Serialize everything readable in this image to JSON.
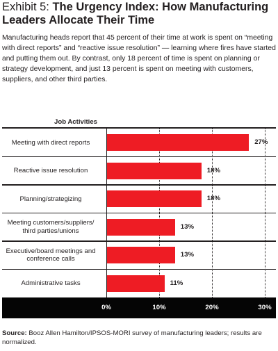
{
  "exhibit": {
    "title_lead": "Exhibit 5: ",
    "title_bold": "The Urgency Index: How Manufacturing Leaders Allocate Their Time",
    "intro": "Manufacturing heads report that 45 percent of their time at work is spent on “meeting with direct reports” and “reactive issue resolution” — learning where fires have started and putting them out. By contrast, only 18 percent of time is spent on planning or strategy development, and just 13 percent is spent on meeting with customers, suppliers, and other third parties.",
    "source_lead": "Source:",
    "source_text": " Booz Allen Hamilton/IPSOS-MORI survey of manufacturing leaders; results are normalized."
  },
  "colors": {
    "bar": "#ee1c24",
    "axis_panel": "#050505",
    "text": "#231f20"
  },
  "chart_data": {
    "type": "bar",
    "orientation": "horizontal",
    "category_header": "Job Activities",
    "categories": [
      "Meeting with direct reports",
      "Reactive issue resolution",
      "Planning/strategizing",
      "Meeting customers/suppliers/ third parties/unions",
      "Executive/board meetings and conference calls",
      "Administrative tasks"
    ],
    "values": [
      27,
      18,
      18,
      13,
      13,
      11
    ],
    "value_labels": [
      "27%",
      "18%",
      "18%",
      "13%",
      "13%",
      "11%"
    ],
    "xlim": [
      0,
      30
    ],
    "ticks": [
      0,
      10,
      20,
      30
    ],
    "tick_labels": [
      "0%",
      "10%",
      "20%",
      "30%"
    ],
    "grid": true
  }
}
